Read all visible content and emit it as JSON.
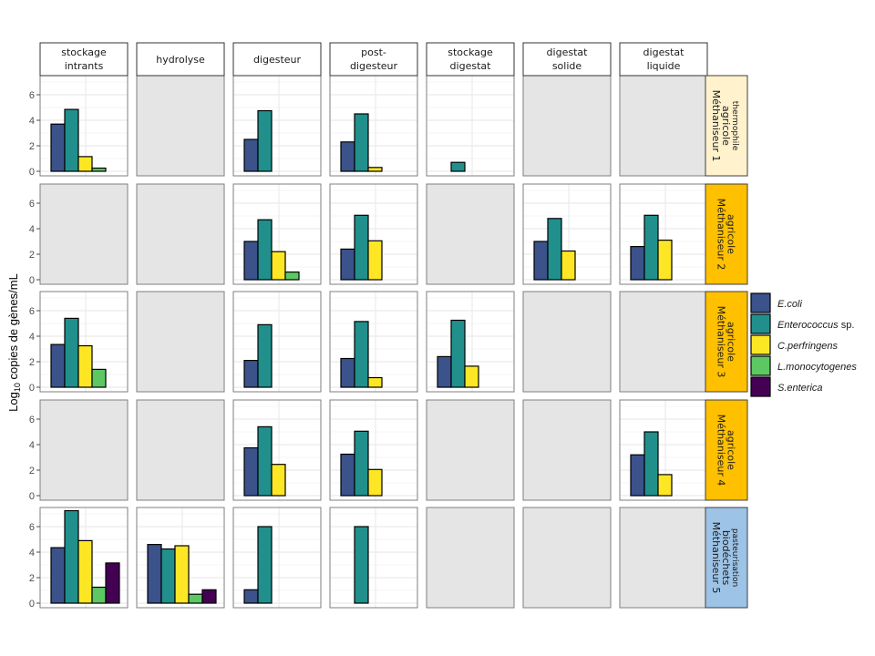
{
  "chart_data": {
    "type": "bar",
    "title": "",
    "ylabel": "Log10 copies de gènes/mL",
    "ylabel_parts": {
      "prefix": "Log",
      "subscript": "10",
      "suffix": " copies de gènes/mL"
    },
    "ylim": [
      0,
      7.5
    ],
    "yticks": [
      0,
      2,
      4,
      6
    ],
    "grid": true,
    "facet_columns": [
      "stockage intrants",
      "hydrolyse",
      "digesteur",
      "post-digesteur",
      "stockage digestat",
      "digestat solide",
      "digestat liquide"
    ],
    "facet_column_lines": [
      [
        "stockage",
        "intrants"
      ],
      [
        "hydrolyse"
      ],
      [
        "digesteur"
      ],
      [
        "post-",
        "digesteur"
      ],
      [
        "stockage",
        "digestat"
      ],
      [
        "digestat",
        "solide"
      ],
      [
        "digestat",
        "liquide"
      ]
    ],
    "facet_rows": [
      {
        "label": "Méthaniseur 1",
        "line2": "agricole",
        "line3": "thermophile",
        "color": "#FFF2CC"
      },
      {
        "label": "Méthaniseur 2",
        "line2": "agricole",
        "line3": "",
        "color": "#FFC000"
      },
      {
        "label": "Méthaniseur 3",
        "line2": "agricole",
        "line3": "",
        "color": "#FFC000"
      },
      {
        "label": "Méthaniseur 4",
        "line2": "agricole",
        "line3": "",
        "color": "#FFC000"
      },
      {
        "label": "Méthaniseur 5",
        "line2": "biodéchets",
        "line3": "pasteurisation",
        "color": "#9DC3E6"
      }
    ],
    "legend": {
      "position": "right",
      "entries": [
        {
          "name": "E.coli",
          "italic": "E.coli",
          "plain": "",
          "color": "#3B528B"
        },
        {
          "name": "Enterococcus sp.",
          "italic": "Enterococcus",
          "plain": " sp.",
          "color": "#21908C"
        },
        {
          "name": "C.perfringens",
          "italic": "C.perfringens",
          "plain": "",
          "color": "#FDE725"
        },
        {
          "name": "L.monocytogenes",
          "italic": "L.monocytogenes",
          "plain": "",
          "color": "#5DC863"
        },
        {
          "name": "S.enterica",
          "italic": "S.enterica",
          "plain": "",
          "color": "#440154"
        }
      ]
    },
    "series_order": [
      "E.coli",
      "Enterococcus sp.",
      "C.perfringens",
      "L.monocytogenes",
      "S.enterica"
    ],
    "panels": [
      [
        {
          "has_data": true,
          "values": [
            3.7,
            4.85,
            1.15,
            0.25,
            null
          ]
        },
        {
          "has_data": false,
          "values": []
        },
        {
          "has_data": true,
          "values": [
            2.5,
            4.75,
            null,
            null,
            null
          ]
        },
        {
          "has_data": true,
          "values": [
            2.3,
            4.5,
            0.3,
            null,
            null
          ]
        },
        {
          "has_data": true,
          "values": [
            null,
            0.7,
            null,
            null,
            null
          ]
        },
        {
          "has_data": false,
          "values": []
        },
        {
          "has_data": false,
          "values": []
        }
      ],
      [
        {
          "has_data": false,
          "values": []
        },
        {
          "has_data": false,
          "values": []
        },
        {
          "has_data": true,
          "values": [
            3.0,
            4.7,
            2.2,
            0.6,
            null
          ]
        },
        {
          "has_data": true,
          "values": [
            2.4,
            5.05,
            3.05,
            null,
            null
          ]
        },
        {
          "has_data": false,
          "values": []
        },
        {
          "has_data": true,
          "values": [
            3.0,
            4.8,
            2.25,
            null,
            null
          ]
        },
        {
          "has_data": true,
          "values": [
            2.6,
            5.05,
            3.1,
            null,
            null
          ]
        }
      ],
      [
        {
          "has_data": true,
          "values": [
            3.35,
            5.4,
            3.25,
            1.4,
            null
          ]
        },
        {
          "has_data": false,
          "values": []
        },
        {
          "has_data": true,
          "values": [
            2.1,
            4.9,
            null,
            null,
            null
          ]
        },
        {
          "has_data": true,
          "values": [
            2.25,
            5.15,
            0.75,
            null,
            null
          ]
        },
        {
          "has_data": true,
          "values": [
            2.4,
            5.25,
            1.65,
            null,
            null
          ]
        },
        {
          "has_data": false,
          "values": []
        },
        {
          "has_data": false,
          "values": []
        }
      ],
      [
        {
          "has_data": false,
          "values": []
        },
        {
          "has_data": false,
          "values": []
        },
        {
          "has_data": true,
          "values": [
            3.75,
            5.4,
            2.45,
            null,
            null
          ]
        },
        {
          "has_data": true,
          "values": [
            3.25,
            5.05,
            2.05,
            null,
            null
          ]
        },
        {
          "has_data": false,
          "values": []
        },
        {
          "has_data": false,
          "values": []
        },
        {
          "has_data": true,
          "values": [
            3.2,
            5.0,
            1.65,
            null,
            null
          ]
        }
      ],
      [
        {
          "has_data": true,
          "values": [
            4.35,
            7.25,
            4.9,
            1.25,
            3.15
          ]
        },
        {
          "has_data": true,
          "values": [
            4.6,
            4.25,
            4.5,
            0.7,
            1.05
          ]
        },
        {
          "has_data": true,
          "values": [
            1.05,
            6.0,
            null,
            null,
            null
          ]
        },
        {
          "has_data": true,
          "values": [
            null,
            6.0,
            null,
            null,
            null
          ]
        },
        {
          "has_data": false,
          "values": []
        },
        {
          "has_data": false,
          "values": []
        },
        {
          "has_data": false,
          "values": []
        }
      ]
    ]
  }
}
